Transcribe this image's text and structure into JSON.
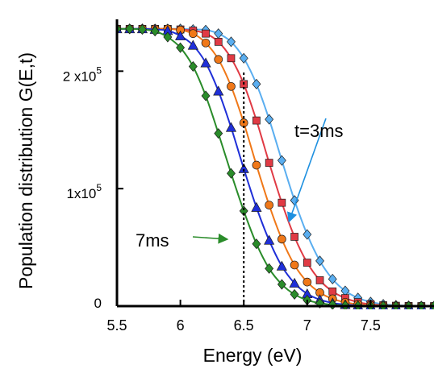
{
  "chart_data": {
    "type": "line",
    "xlabel": "Energy (eV)",
    "ylabel": "Population distribution G(E,t)",
    "xlim": [
      5.5,
      8.0
    ],
    "ylim": [
      0,
      240000
    ],
    "x_ticks": [
      {
        "value": 5.5,
        "label": "5.5"
      },
      {
        "value": 6.0,
        "label": "6"
      },
      {
        "value": 6.5,
        "label": "6.5"
      },
      {
        "value": 7.0,
        "label": "7"
      },
      {
        "value": 7.5,
        "label": "7.5"
      }
    ],
    "y_ticks": [
      {
        "value": 0,
        "base": "0",
        "exp": ""
      },
      {
        "value": 100000,
        "base": "1x10",
        "exp": "5"
      },
      {
        "value": 200000,
        "base": "2 x10",
        "exp": "5"
      }
    ],
    "grid": false,
    "reference_line": {
      "x": 6.5,
      "style": "dotted"
    },
    "x": [
      5.5,
      5.6,
      5.7,
      5.8,
      5.9,
      6.0,
      6.1,
      6.2,
      6.3,
      6.4,
      6.5,
      6.6,
      6.7,
      6.8,
      6.9,
      7.0,
      7.1,
      7.2,
      7.3,
      7.4,
      7.5,
      7.6,
      7.7,
      7.8,
      7.9,
      8.0
    ],
    "series": [
      {
        "color": "#5aaef0",
        "marker": "diamond",
        "values": [
          236000,
          236000,
          236000,
          236000,
          236000,
          236000,
          235500,
          235000,
          232000,
          225000,
          211000,
          189000,
          159000,
          124000,
          90000,
          61000,
          38500,
          23000,
          13000,
          7000,
          3500,
          1600,
          700,
          300,
          100,
          0
        ]
      },
      {
        "color": "#e03a44",
        "marker": "square",
        "values": [
          236000,
          236000,
          236000,
          236000,
          236000,
          235500,
          234500,
          232000,
          225000,
          211000,
          189000,
          158000,
          122000,
          88000,
          59000,
          37000,
          22000,
          12500,
          6800,
          3400,
          1600,
          700,
          300,
          100,
          0,
          0
        ]
      },
      {
        "color": "#f07818",
        "marker": "circle",
        "values": [
          236000,
          236000,
          236000,
          236000,
          236000,
          235000,
          232000,
          224000,
          210000,
          187000,
          156000,
          120000,
          86000,
          57000,
          35000,
          20500,
          11500,
          6200,
          3200,
          1500,
          700,
          300,
          100,
          0,
          0,
          0
        ]
      },
      {
        "color": "#1f2fd8",
        "marker": "triangle",
        "values": [
          236000,
          236000,
          236000,
          235500,
          234500,
          230000,
          222000,
          207000,
          183000,
          152000,
          117000,
          84000,
          56000,
          34000,
          19500,
          10500,
          5500,
          2700,
          1300,
          600,
          250,
          100,
          0,
          0,
          0,
          0
        ]
      },
      {
        "color": "#2a8c2a",
        "marker": "diamond",
        "values": [
          236000,
          236000,
          235500,
          234000,
          229000,
          220000,
          204000,
          179000,
          147000,
          113000,
          81000,
          53000,
          32000,
          18500,
          10000,
          5100,
          2500,
          1200,
          500,
          200,
          100,
          0,
          0,
          0,
          0,
          0
        ]
      }
    ],
    "annotations": [
      {
        "text": "t=3ms",
        "color": "#1e90e0",
        "arrow_to": {
          "x": 6.86,
          "y": 73000
        }
      },
      {
        "text": "7ms",
        "color": "#2a8c2a",
        "arrow_to": {
          "x": 6.36,
          "y": 57000
        }
      }
    ]
  }
}
